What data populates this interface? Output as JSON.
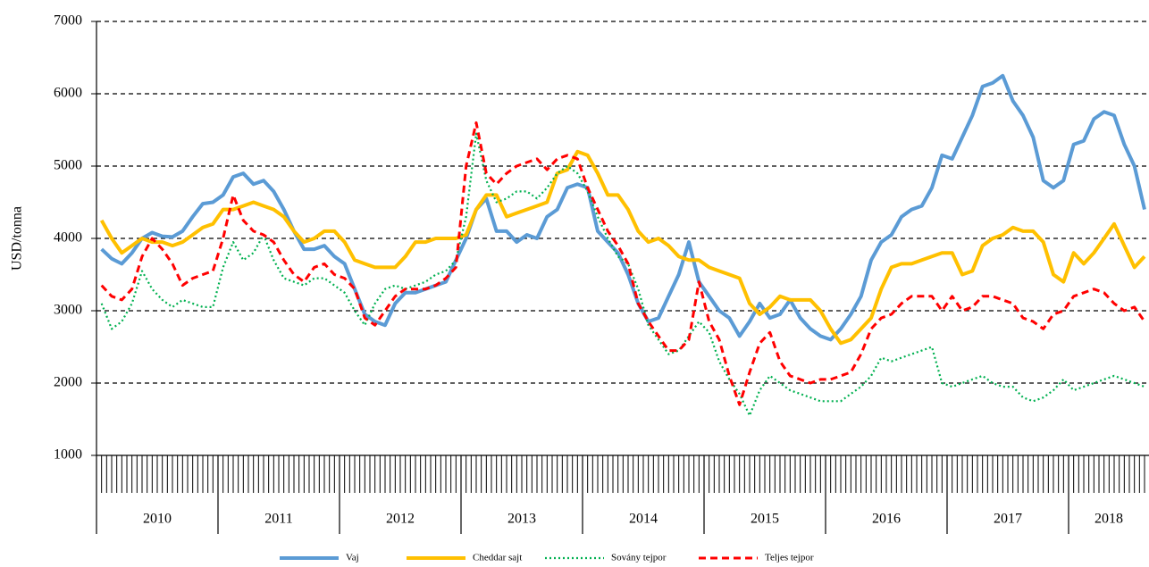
{
  "chart_data": {
    "type": "line",
    "y_label": "USD/tonna",
    "years": [
      "2010",
      "2011",
      "2012",
      "2013",
      "2014",
      "2015",
      "2016",
      "2017",
      "2018"
    ],
    "ylim": [
      1000,
      7000
    ],
    "yticks": [
      1000,
      2000,
      3000,
      4000,
      5000,
      6000,
      7000
    ],
    "grid": true,
    "legend": "bottom",
    "series": [
      {
        "name": "Vaj",
        "color": "#5b9bd5",
        "style": "solid",
        "values": [
          3850,
          3720,
          3650,
          3800,
          4000,
          4080,
          4030,
          4020,
          4100,
          4300,
          4480,
          4500,
          4600,
          4850,
          4900,
          4750,
          4800,
          4650,
          4400,
          4100,
          3850,
          3850,
          3900,
          3750,
          3650,
          3300,
          2950,
          2850,
          2800,
          3100,
          3250,
          3250,
          3300,
          3350,
          3400,
          3700,
          4000,
          4400,
          4550,
          4100,
          4100,
          3950,
          4050,
          4000,
          4300,
          4400,
          4700,
          4750,
          4700,
          4100,
          3950,
          3800,
          3500,
          3100,
          2850,
          2900,
          3200,
          3500,
          3950,
          3400,
          3200,
          3000,
          2900,
          2650,
          2850,
          3100,
          2900,
          2950,
          3150,
          2900,
          2750,
          2650,
          2600,
          2750,
          2950,
          3200,
          3700,
          3950,
          4050,
          4300,
          4400,
          4450,
          4700,
          5150,
          5100,
          5400,
          5700,
          6100,
          6150,
          6250,
          5900,
          5700,
          5400,
          4800,
          4700,
          4800,
          5300,
          5350,
          5650,
          5750,
          5700,
          5300,
          5000,
          4400
        ]
      },
      {
        "name": "Cheddar sajt",
        "color": "#ffc000",
        "style": "solid",
        "values": [
          4250,
          4000,
          3800,
          3900,
          4000,
          3950,
          3950,
          3900,
          3950,
          4050,
          4150,
          4200,
          4400,
          4400,
          4450,
          4500,
          4450,
          4400,
          4300,
          4100,
          3950,
          4000,
          4100,
          4100,
          3950,
          3700,
          3650,
          3600,
          3600,
          3600,
          3750,
          3950,
          3950,
          4000,
          4000,
          4000,
          4050,
          4400,
          4600,
          4600,
          4300,
          4350,
          4400,
          4450,
          4500,
          4900,
          4950,
          5200,
          5150,
          4900,
          4600,
          4600,
          4400,
          4100,
          3950,
          4000,
          3900,
          3750,
          3700,
          3700,
          3600,
          3550,
          3500,
          3450,
          3100,
          2950,
          3050,
          3200,
          3150,
          3150,
          3150,
          3000,
          2750,
          2550,
          2600,
          2750,
          2900,
          3300,
          3600,
          3650,
          3650,
          3700,
          3750,
          3800,
          3800,
          3500,
          3550,
          3900,
          4000,
          4050,
          4150,
          4100,
          4100,
          3950,
          3500,
          3400,
          3800,
          3650,
          3800,
          4000,
          4200,
          3900,
          3600,
          3750
        ]
      },
      {
        "name": "Sovány tejpor",
        "color": "#00b050",
        "style": "dotted",
        "values": [
          3100,
          2750,
          2850,
          3100,
          3550,
          3300,
          3150,
          3050,
          3150,
          3100,
          3050,
          3050,
          3600,
          3950,
          3700,
          3800,
          4050,
          3700,
          3450,
          3400,
          3350,
          3450,
          3450,
          3350,
          3250,
          3000,
          2800,
          3100,
          3300,
          3350,
          3300,
          3350,
          3400,
          3500,
          3550,
          3700,
          4300,
          5450,
          4800,
          4500,
          4550,
          4650,
          4650,
          4550,
          4700,
          4900,
          5000,
          4900,
          4650,
          4300,
          4000,
          3750,
          3650,
          3300,
          2800,
          2600,
          2400,
          2450,
          2650,
          2850,
          2700,
          2300,
          2050,
          1850,
          1550,
          1900,
          2100,
          2000,
          1900,
          1850,
          1800,
          1750,
          1750,
          1750,
          1850,
          1950,
          2100,
          2350,
          2300,
          2350,
          2400,
          2450,
          2500,
          2000,
          1950,
          2000,
          2050,
          2100,
          2000,
          1950,
          1950,
          1800,
          1750,
          1800,
          1900,
          2050,
          1900,
          1950,
          2000,
          2050,
          2100,
          2050,
          2000,
          1950
        ]
      },
      {
        "name": "Teljes tejpor",
        "color": "#ff0000",
        "style": "dashed",
        "values": [
          3350,
          3200,
          3150,
          3300,
          3750,
          4000,
          3850,
          3650,
          3350,
          3450,
          3500,
          3550,
          4000,
          4600,
          4250,
          4100,
          4050,
          3950,
          3700,
          3500,
          3400,
          3600,
          3650,
          3500,
          3450,
          3300,
          2900,
          2800,
          3000,
          3200,
          3300,
          3300,
          3300,
          3350,
          3450,
          3600,
          5000,
          5600,
          4900,
          4750,
          4900,
          5000,
          5050,
          5100,
          4950,
          5100,
          5150,
          5100,
          4700,
          4400,
          4100,
          3900,
          3650,
          3100,
          2850,
          2650,
          2450,
          2450,
          2600,
          3400,
          2850,
          2600,
          2100,
          1700,
          2150,
          2550,
          2700,
          2300,
          2100,
          2050,
          2000,
          2050,
          2050,
          2100,
          2150,
          2400,
          2750,
          2900,
          2950,
          3100,
          3200,
          3200,
          3200,
          3000,
          3200,
          3000,
          3050,
          3200,
          3200,
          3150,
          3100,
          2900,
          2850,
          2750,
          2950,
          3000,
          3200,
          3250,
          3300,
          3250,
          3100,
          3000,
          3050,
          2850
        ]
      }
    ]
  }
}
